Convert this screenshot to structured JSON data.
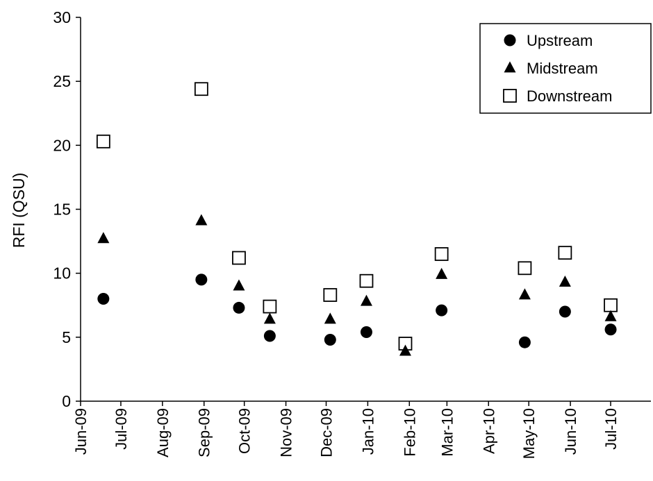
{
  "chart_data": {
    "type": "scatter",
    "title": "",
    "xlabel": "",
    "ylabel": "RFI (QSU)",
    "ylim": [
      0,
      30
    ],
    "yticks": [
      0,
      5,
      10,
      15,
      20,
      25,
      30
    ],
    "xlim": [
      "2009-06-01",
      "2010-07-31"
    ],
    "xtick_labels": [
      "Jun-09",
      "Jul-09",
      "Aug-09",
      "Sep-09",
      "Oct-09",
      "Nov-09",
      "Dec-09",
      "Jan-10",
      "Feb-10",
      "Mar-10",
      "Apr-10",
      "May-10",
      "Jun-10",
      "Jul-10"
    ],
    "xtick_dates": [
      "2009-06-01",
      "2009-07-01",
      "2009-08-01",
      "2009-09-01",
      "2009-10-01",
      "2009-11-01",
      "2009-12-01",
      "2010-01-01",
      "2010-02-01",
      "2010-03-01",
      "2010-04-01",
      "2010-05-01",
      "2010-06-01",
      "2010-07-01"
    ],
    "grid": false,
    "legend_position": "top-right",
    "series": [
      {
        "name": "Upstream",
        "marker": "circle",
        "color": "#000000",
        "x": [
          "2009-06-18",
          "2009-08-30",
          "2009-09-27",
          "2009-10-20",
          "2009-12-04",
          "2009-12-31",
          "2010-02-25",
          "2010-04-28",
          "2010-05-28",
          "2010-07-01"
        ],
        "y": [
          8.0,
          9.5,
          7.3,
          5.1,
          4.8,
          5.4,
          7.1,
          4.6,
          7.0,
          5.6
        ]
      },
      {
        "name": "Midstream",
        "marker": "triangle",
        "color": "#000000",
        "x": [
          "2009-06-18",
          "2009-08-30",
          "2009-09-27",
          "2009-10-20",
          "2009-12-04",
          "2009-12-31",
          "2010-01-29",
          "2010-02-25",
          "2010-04-28",
          "2010-05-28",
          "2010-07-01"
        ],
        "y": [
          12.7,
          14.1,
          9.0,
          6.4,
          6.4,
          7.8,
          3.9,
          9.9,
          8.3,
          9.3,
          6.6
        ]
      },
      {
        "name": "Downstream",
        "marker": "square-open",
        "color": "#000000",
        "x": [
          "2009-06-18",
          "2009-08-30",
          "2009-09-27",
          "2009-10-20",
          "2009-12-04",
          "2009-12-31",
          "2010-01-29",
          "2010-02-25",
          "2010-04-28",
          "2010-05-28",
          "2010-07-01"
        ],
        "y": [
          20.3,
          24.4,
          11.2,
          7.4,
          8.3,
          9.4,
          4.5,
          11.5,
          10.4,
          11.6,
          7.5
        ]
      }
    ]
  }
}
